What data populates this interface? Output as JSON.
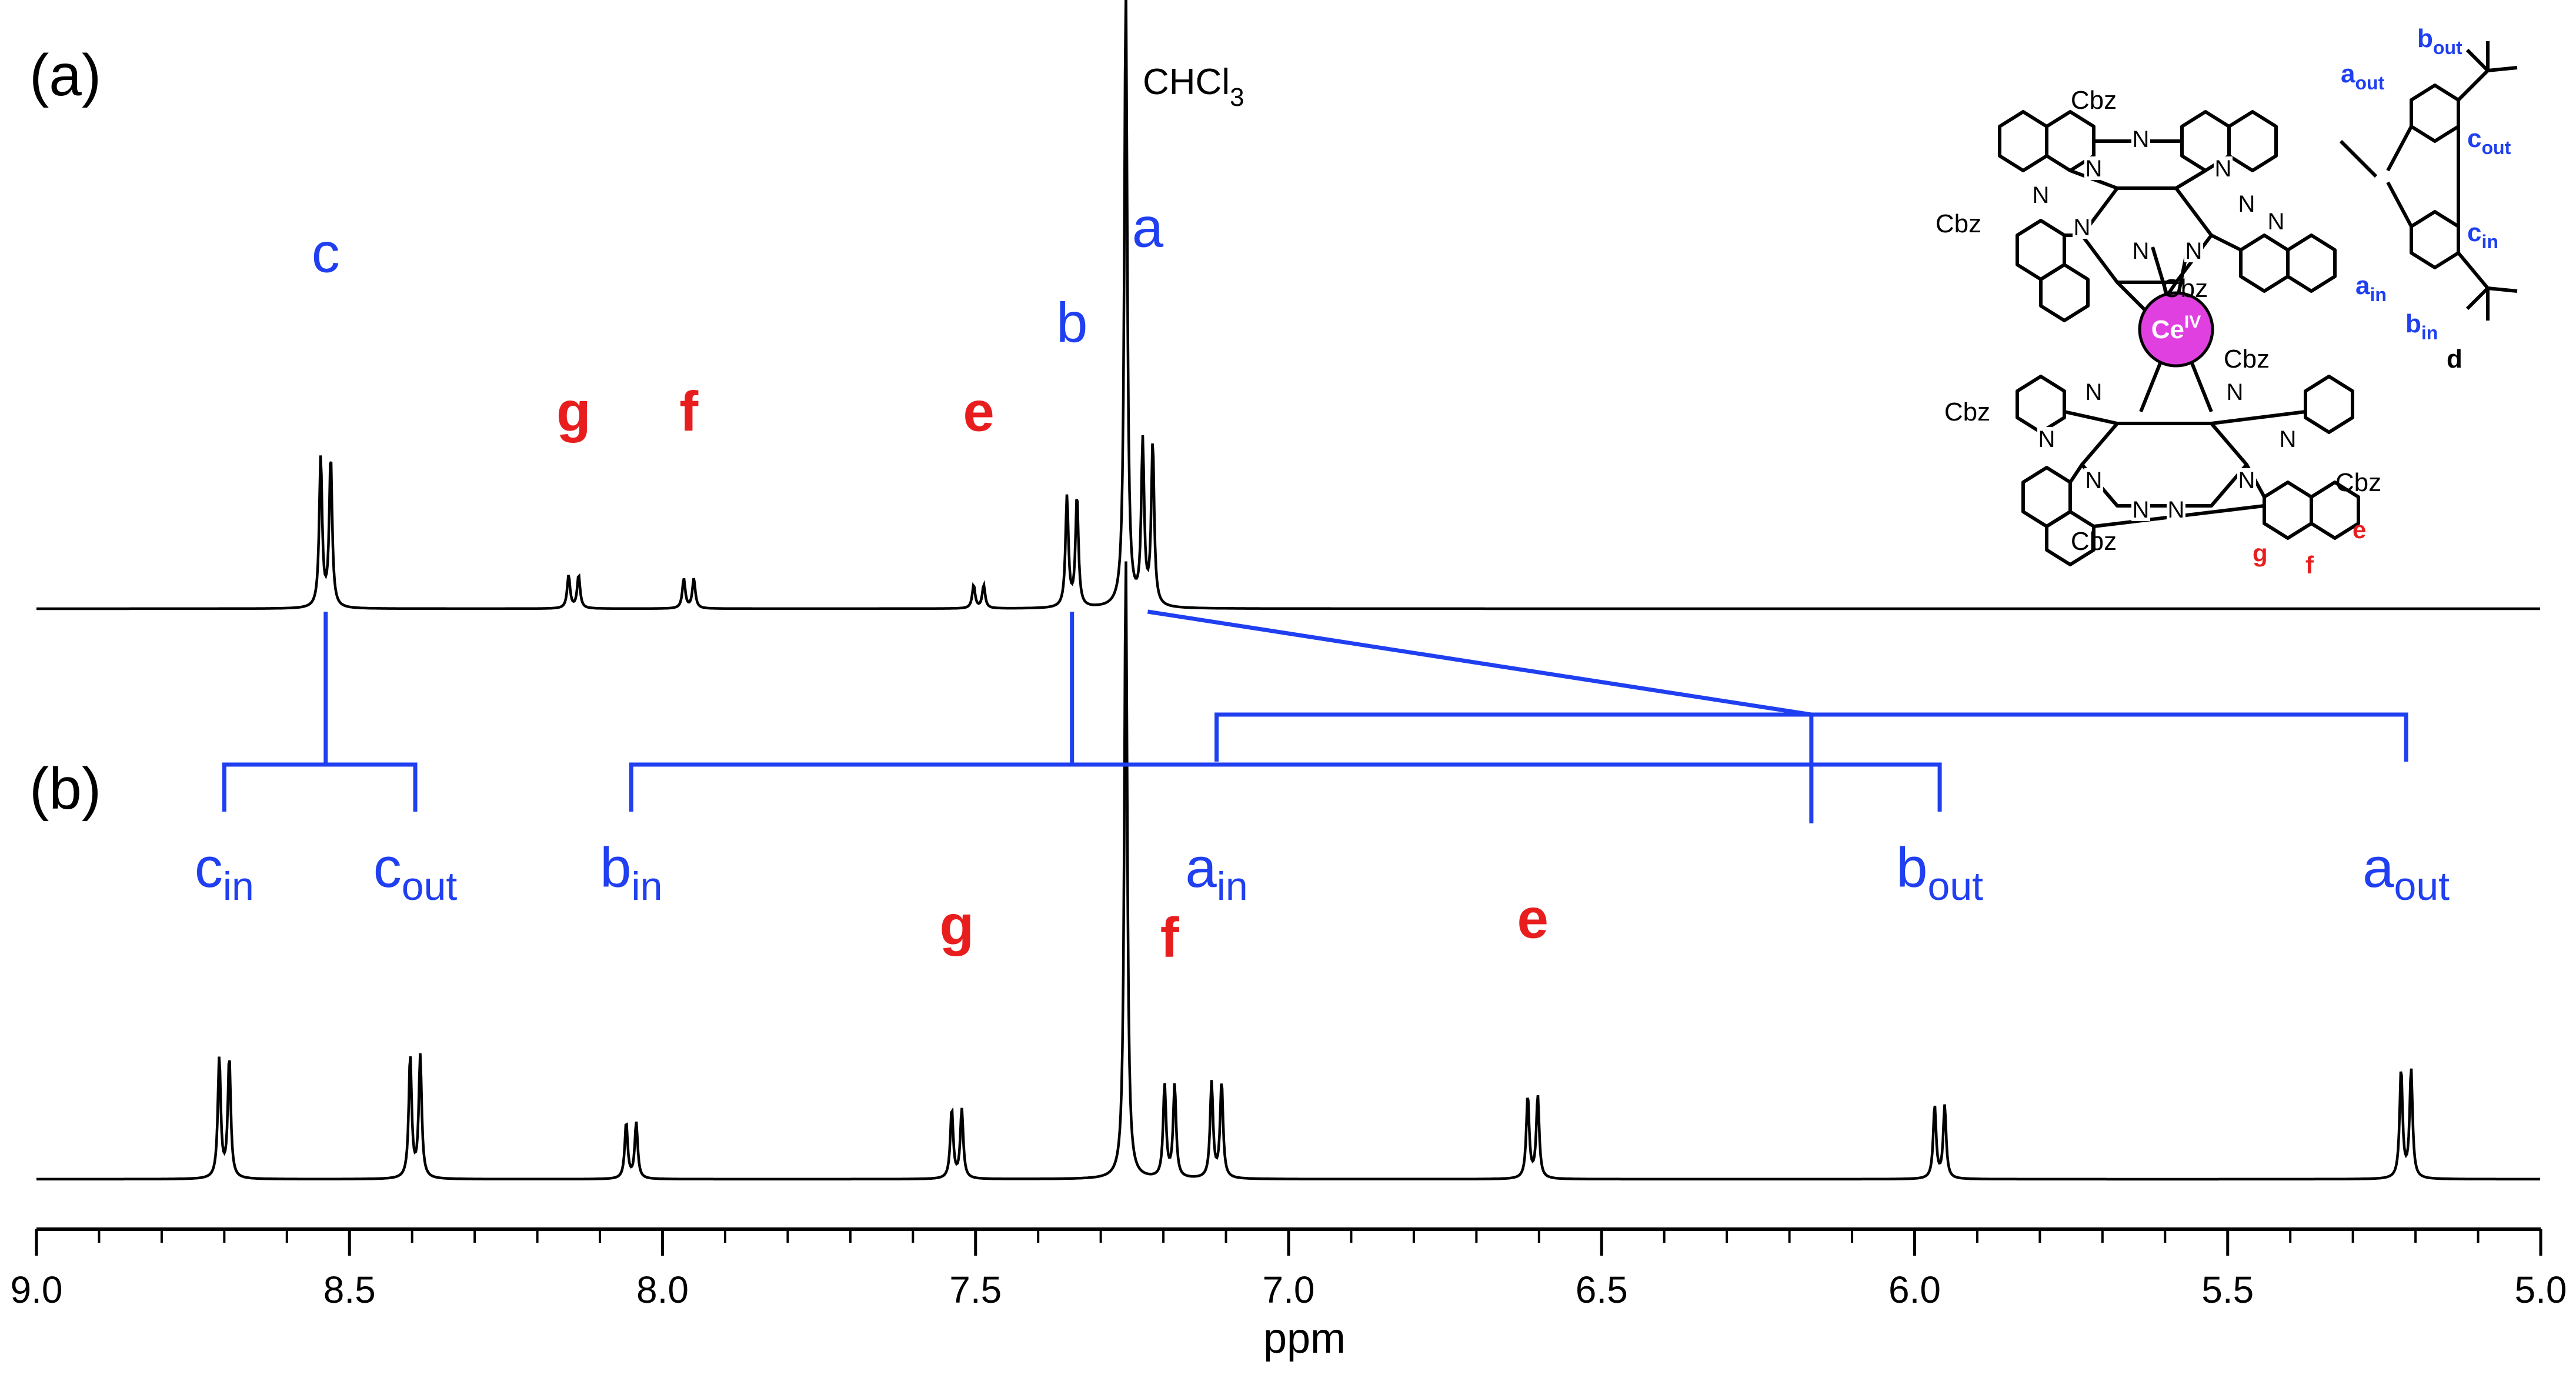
{
  "panel_labels": {
    "a": "(a)",
    "b": "(b)"
  },
  "colors": {
    "trace": "#000000",
    "blue": "#1f3ff0",
    "red": "#e81e1e",
    "ce_atom": "#e040e0"
  },
  "chart_data": {
    "type": "line",
    "xlabel": "ppm",
    "xlim": [
      9.0,
      5.0
    ],
    "x_reversed": true,
    "xticks": [
      "9.0",
      "8.5",
      "8.0",
      "7.5",
      "7.0",
      "6.5",
      "6.0",
      "5.5",
      "5.0"
    ],
    "solvent_label": "CHCl",
    "solvent_sub": "3",
    "panels": [
      {
        "id": "a",
        "label": "(a)",
        "peaks": [
          {
            "ppm": 8.538,
            "height": 0.455,
            "label": "c",
            "sub": "",
            "color": "blue",
            "offset": 0.53
          },
          {
            "ppm": 8.142,
            "height": 0.1,
            "label": "g",
            "sub": "",
            "color": "red",
            "offset": 0.28
          },
          {
            "ppm": 7.958,
            "height": 0.09,
            "label": "f",
            "sub": "",
            "color": "red",
            "offset": 0.28
          },
          {
            "ppm": 7.495,
            "height": 0.07,
            "label": "e",
            "sub": "",
            "color": "red",
            "offset": 0.28
          },
          {
            "ppm": 7.346,
            "height": 0.335,
            "label": "b",
            "sub": "",
            "color": "blue",
            "offset": 0.42
          },
          {
            "ppm": 7.225,
            "height": 0.49,
            "label": "a",
            "sub": "",
            "color": "blue",
            "offset": 0.57
          }
        ]
      },
      {
        "id": "b",
        "label": "(b)",
        "peaks": [
          {
            "ppm": 8.7,
            "height": 0.365,
            "label": "c",
            "sub": "in",
            "color": "blue",
            "offset": 0.46
          },
          {
            "ppm": 8.395,
            "height": 0.37,
            "label": "c",
            "sub": "out",
            "color": "blue",
            "offset": 0.46
          },
          {
            "ppm": 8.05,
            "height": 0.17,
            "label": "b",
            "sub": "in",
            "color": "blue",
            "offset": 0.46
          },
          {
            "ppm": 7.53,
            "height": 0.21,
            "label": "g",
            "sub": "",
            "color": "red",
            "offset": 0.37
          },
          {
            "ppm": 7.19,
            "height": 0.28,
            "label": "f",
            "sub": "",
            "color": "red",
            "offset": 0.35
          },
          {
            "ppm": 7.115,
            "height": 0.29,
            "label": "a",
            "sub": "in",
            "color": "blue",
            "offset": 0.46
          },
          {
            "ppm": 6.61,
            "height": 0.25,
            "label": "e",
            "sub": "",
            "color": "red",
            "offset": 0.38
          },
          {
            "ppm": 5.96,
            "height": 0.22,
            "label": "b",
            "sub": "out",
            "color": "blue",
            "offset": 0.46
          },
          {
            "ppm": 5.215,
            "height": 0.33,
            "label": "a",
            "sub": "out",
            "color": "blue",
            "offset": 0.46
          }
        ]
      }
    ],
    "correlations": [
      {
        "from": 8.538,
        "to": [
          8.7,
          8.395
        ]
      },
      {
        "from": 7.346,
        "to": [
          8.05,
          5.96
        ]
      },
      {
        "from": 7.225,
        "to": [
          7.115,
          5.215
        ]
      }
    ]
  },
  "structure": {
    "cbz_labels": [
      "Cbz",
      "Cbz",
      "Cbz",
      "Cbz",
      "Cbz",
      "Cbz",
      "Cbz"
    ],
    "n_labels": [
      "N",
      "N",
      "N",
      "N",
      "N",
      "N",
      "N",
      "N",
      "N",
      "N",
      "N",
      "N",
      "N",
      "N",
      "N",
      "N",
      "N"
    ],
    "metal": "Ce",
    "metal_sup": "IV",
    "blue_labels": [
      {
        "t": "b",
        "s": "out"
      },
      {
        "t": "a",
        "s": "out"
      },
      {
        "t": "c",
        "s": "out"
      },
      {
        "t": "c",
        "s": "in"
      },
      {
        "t": "a",
        "s": "in"
      },
      {
        "t": "b",
        "s": "in"
      }
    ],
    "black_labels": [
      "d"
    ],
    "red_labels": [
      "g",
      "f",
      "e"
    ]
  }
}
